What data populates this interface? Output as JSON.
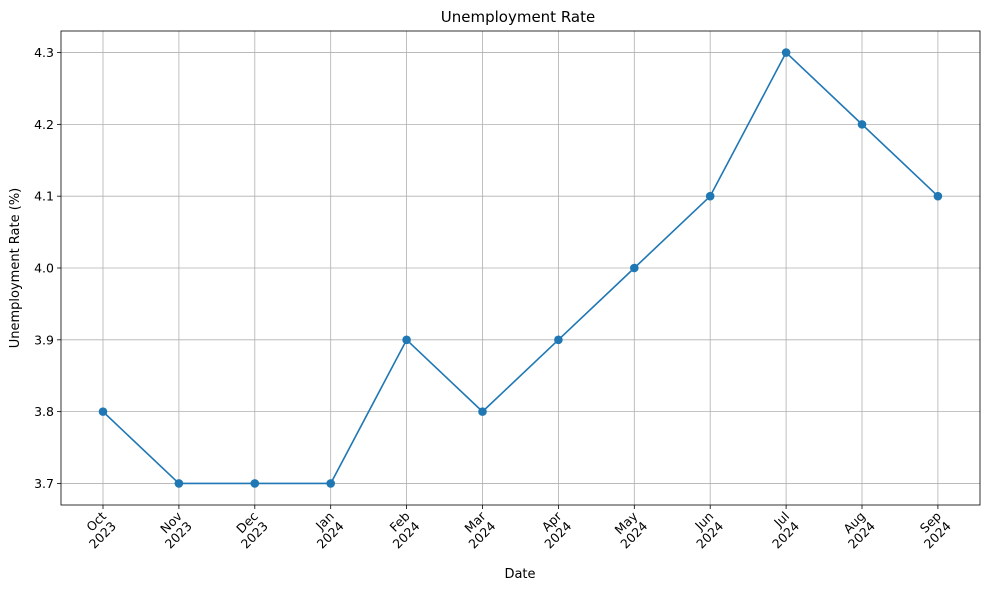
{
  "chart_data": {
    "type": "line",
    "title": "Unemployment Rate",
    "xlabel": "Date",
    "ylabel": "Unemployment Rate (%)",
    "categories": [
      [
        "Oct",
        "2023"
      ],
      [
        "Nov",
        "2023"
      ],
      [
        "Dec",
        "2023"
      ],
      [
        "Jan",
        "2024"
      ],
      [
        "Feb",
        "2024"
      ],
      [
        "Mar",
        "2024"
      ],
      [
        "Apr",
        "2024"
      ],
      [
        "May",
        "2024"
      ],
      [
        "Jun",
        "2024"
      ],
      [
        "Jul",
        "2024"
      ],
      [
        "Aug",
        "2024"
      ],
      [
        "Sep",
        "2024"
      ]
    ],
    "x": [
      "2023-10",
      "2023-11",
      "2023-12",
      "2024-01",
      "2024-02",
      "2024-03",
      "2024-04",
      "2024-05",
      "2024-06",
      "2024-07",
      "2024-08",
      "2024-09"
    ],
    "series": [
      {
        "values": [
          3.8,
          3.7,
          3.7,
          3.7,
          3.9,
          3.8,
          3.9,
          4.0,
          4.1,
          4.3,
          4.2,
          4.1
        ],
        "color": "#1f77b4",
        "marker": "circle"
      }
    ],
    "yticks": [
      "3.7",
      "3.8",
      "3.9",
      "4.0",
      "4.1",
      "4.2",
      "4.3"
    ],
    "ylim": [
      3.67,
      4.33
    ],
    "grid": true,
    "xtick_rotation": 45
  }
}
